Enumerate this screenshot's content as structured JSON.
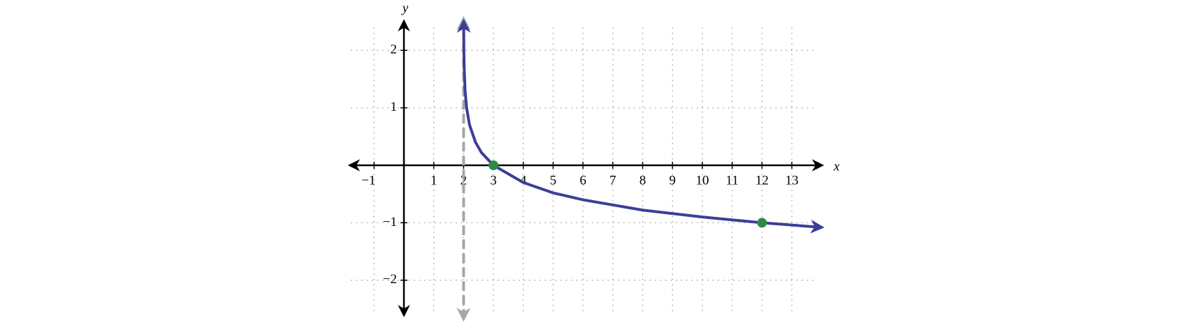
{
  "chart_data": {
    "type": "line",
    "x_label": "x",
    "y_label": "y",
    "xlim": [
      -1.8,
      14
    ],
    "ylim": [
      -2.6,
      2.5
    ],
    "xticks": [
      {
        "value": -1,
        "label": "−1"
      },
      1,
      2,
      3,
      4,
      5,
      6,
      7,
      8,
      9,
      10,
      11,
      12,
      13
    ],
    "yticks": [
      {
        "value": -2,
        "label": "−2"
      },
      {
        "value": -1,
        "label": "−1"
      },
      1,
      2
    ],
    "grid": true,
    "asymptote_x": 2,
    "asymptote_color": "#a6a6a6",
    "series": [
      {
        "color": "#3d3d99",
        "x": [
          2.003,
          2.01,
          2.02,
          2.05,
          2.1,
          2.2,
          2.4,
          2.6,
          3,
          4,
          5,
          6,
          8,
          10,
          12,
          14
        ],
        "values": [
          2.5,
          2,
          1.7,
          1.3,
          1,
          0.7,
          0.4,
          0.22,
          0,
          -0.3,
          -0.48,
          -0.6,
          -0.78,
          -0.9,
          -1,
          -1.08
        ]
      },
      {
        "color": "#2e8b46",
        "x": [
          3,
          12
        ],
        "values": [
          0,
          -1
        ]
      }
    ]
  }
}
